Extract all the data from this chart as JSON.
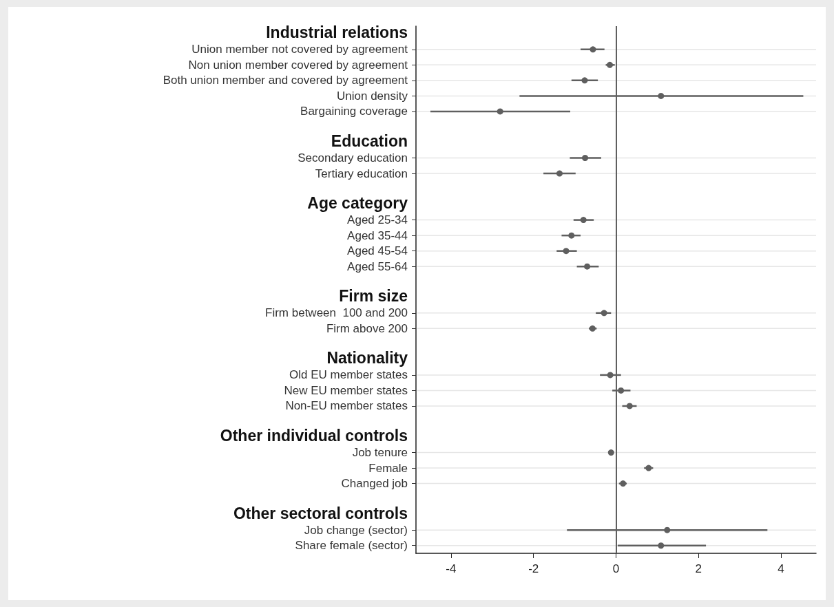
{
  "chart_data": {
    "type": "scatter",
    "categories": [
      "Industrial relations",
      "Union member not covered by agreement",
      "Non union member covered by agreement",
      "Both union member and covered by agreement",
      "Union density",
      "Bargaining coverage",
      null,
      "Education",
      "Secondary education",
      "Tertiary education",
      null,
      "Age category",
      "Aged 25-34",
      "Aged 35-44",
      "Aged 45-54",
      "Aged 55-64",
      null,
      "Firm size",
      "Firm between  100 and 200",
      "Firm above 200",
      null,
      "Nationality",
      "Old EU member states",
      "New EU member states",
      "Non-EU member states",
      null,
      "Other individual controls",
      "Job tenure",
      "Female",
      "Changed job",
      null,
      "Other sectoral controls",
      "Job change (sector)",
      "Share female (sector)"
    ],
    "orientation": "horizontal",
    "series": [
      {
        "color": "#5f5f5f",
        "values": [
          null,
          -0.56,
          -0.15,
          -0.76,
          1.09,
          -2.81,
          null,
          null,
          -0.75,
          -1.37,
          null,
          null,
          -0.79,
          -1.08,
          -1.21,
          -0.7,
          null,
          null,
          -0.29,
          -0.57,
          null,
          null,
          -0.14,
          0.12,
          0.33,
          null,
          null,
          -0.12,
          0.79,
          0.17,
          null,
          null,
          1.24,
          1.09
        ],
        "errors": [
          null,
          [
            -0.86,
            -0.28
          ],
          [
            -0.25,
            -0.03
          ],
          [
            -1.08,
            -0.44
          ],
          [
            -2.34,
            4.54
          ],
          [
            -4.5,
            -1.11
          ],
          null,
          null,
          [
            -1.12,
            -0.36
          ],
          [
            -1.76,
            -0.98
          ],
          null,
          null,
          [
            -1.03,
            -0.54
          ],
          [
            -1.32,
            -0.86
          ],
          [
            -1.44,
            -0.95
          ],
          [
            -0.95,
            -0.42
          ],
          null,
          null,
          [
            -0.49,
            -0.12
          ],
          [
            -0.66,
            -0.47
          ],
          null,
          null,
          [
            -0.39,
            0.12
          ],
          [
            -0.09,
            0.35
          ],
          [
            0.15,
            0.5
          ],
          null,
          null,
          [
            -0.19,
            -0.06
          ],
          [
            0.68,
            0.9
          ],
          [
            0.07,
            0.26
          ],
          null,
          null,
          [
            -1.19,
            3.67
          ],
          [
            0.04,
            2.18
          ]
        ]
      }
    ],
    "xlim": [
      -4.85,
      4.85
    ],
    "xticks": [
      -4,
      -2,
      0,
      2,
      4
    ],
    "ref_lines": [
      {
        "axis": "x",
        "value": 0,
        "color": "#5f5f5f"
      }
    ],
    "grid": "y",
    "marker": "circle"
  }
}
